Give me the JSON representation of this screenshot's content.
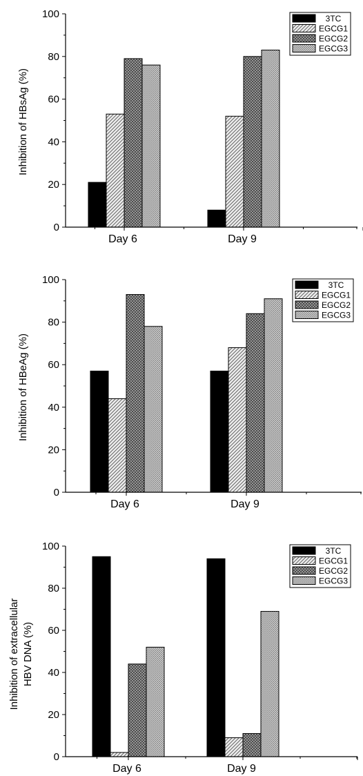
{
  "chart_data": [
    {
      "type": "bar",
      "categories": [
        "Day 6",
        "Day 9"
      ],
      "ylabel": "Inhibition of HBsAg (%)",
      "ylim": [
        0,
        100
      ],
      "yticks": [
        "0",
        "20",
        "40",
        "60",
        "80",
        "100"
      ],
      "legend_position": "top-right",
      "series": [
        {
          "name": "3TC",
          "values": [
            21,
            8
          ]
        },
        {
          "name": "EGCG1",
          "values": [
            53,
            52
          ]
        },
        {
          "name": "EGCG2",
          "values": [
            79,
            80
          ]
        },
        {
          "name": "EGCG3",
          "values": [
            76,
            83
          ]
        }
      ]
    },
    {
      "type": "bar",
      "categories": [
        "Day 6",
        "Day 9"
      ],
      "ylabel": "Inhibition of HBeAg (%)",
      "ylim": [
        0,
        100
      ],
      "yticks": [
        "0",
        "20",
        "40",
        "60",
        "80",
        "100"
      ],
      "legend_position": "top-right",
      "series": [
        {
          "name": "3TC",
          "values": [
            57,
            57
          ]
        },
        {
          "name": "EGCG1",
          "values": [
            44,
            68
          ]
        },
        {
          "name": "EGCG2",
          "values": [
            93,
            84
          ]
        },
        {
          "name": "EGCG3",
          "values": [
            78,
            91
          ]
        }
      ]
    },
    {
      "type": "bar",
      "categories": [
        "Day 6",
        "Day 9"
      ],
      "ylabel": "Inhibition of extracellular",
      "ylabel2": "HBV DNA (%)",
      "ylim": [
        0,
        100
      ],
      "yticks": [
        "0",
        "20",
        "40",
        "60",
        "80",
        "100"
      ],
      "legend_position": "top-right",
      "series": [
        {
          "name": "3TC",
          "values": [
            95,
            94
          ]
        },
        {
          "name": "EGCG1",
          "values": [
            2,
            9
          ]
        },
        {
          "name": "EGCG2",
          "values": [
            44,
            11
          ]
        },
        {
          "name": "EGCG3",
          "values": [
            52,
            69
          ]
        }
      ]
    }
  ],
  "colors": {
    "axis": "#000000",
    "series_fill": [
      "#000000",
      "#e6e6e6",
      "#9a9a9a",
      "#cfcfcf"
    ],
    "series_pattern": [
      "solid",
      "diagonal-hatch",
      "cross-hatch-dark",
      "cross-hatch-light"
    ]
  }
}
